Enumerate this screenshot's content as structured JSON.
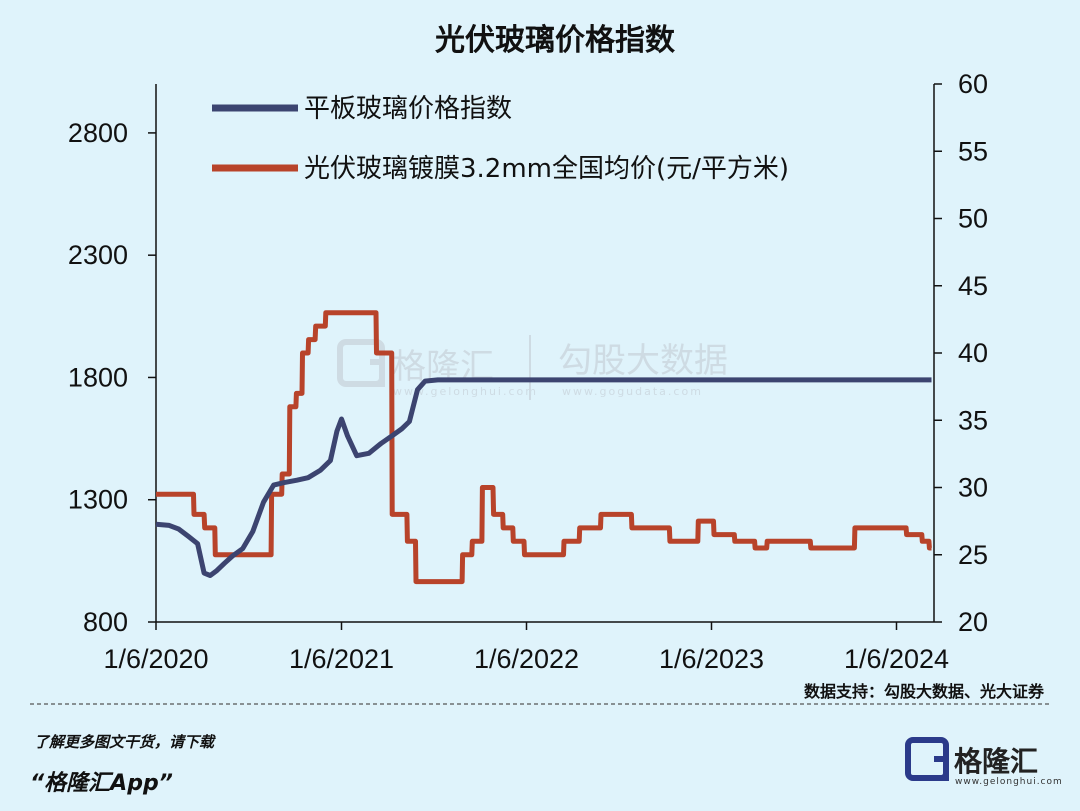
{
  "chart_data": {
    "type": "line",
    "title": "光伏玻璃价格指数",
    "x_tick_labels": [
      "1/6/2020",
      "1/6/2021",
      "1/6/2022",
      "1/6/2023",
      "1/6/2024"
    ],
    "y_left": {
      "range": [
        800,
        3000
      ],
      "ticks": [
        800,
        1300,
        1800,
        2300,
        2800
      ]
    },
    "y_right": {
      "range": [
        20,
        60
      ],
      "ticks": [
        20,
        25,
        30,
        35,
        40,
        45,
        50,
        55,
        60
      ]
    },
    "legend_position": "top-left",
    "grid": false,
    "series": [
      {
        "name": "平板玻璃价格指数",
        "axis": "left",
        "color": "#3c4470",
        "points": [
          [
            "2020-01-06",
            1200
          ],
          [
            "2020-02-01",
            1195
          ],
          [
            "2020-02-20",
            1180
          ],
          [
            "2020-03-10",
            1150
          ],
          [
            "2020-03-28",
            1120
          ],
          [
            "2020-04-10",
            1000
          ],
          [
            "2020-04-22",
            990
          ],
          [
            "2020-05-05",
            1010
          ],
          [
            "2020-05-20",
            1040
          ],
          [
            "2020-06-05",
            1070
          ],
          [
            "2020-06-25",
            1100
          ],
          [
            "2020-07-15",
            1170
          ],
          [
            "2020-08-05",
            1290
          ],
          [
            "2020-08-25",
            1360
          ],
          [
            "2020-09-15",
            1370
          ],
          [
            "2020-10-10",
            1380
          ],
          [
            "2020-11-01",
            1390
          ],
          [
            "2020-11-25",
            1420
          ],
          [
            "2020-12-15",
            1460
          ],
          [
            "2020-12-28",
            1580
          ],
          [
            "2021-01-06",
            1630
          ],
          [
            "2021-01-18",
            1560
          ],
          [
            "2021-02-05",
            1480
          ],
          [
            "2021-03-01",
            1490
          ],
          [
            "2021-03-25",
            1530
          ],
          [
            "2021-04-15",
            1560
          ],
          [
            "2021-05-05",
            1590
          ],
          [
            "2021-05-20",
            1620
          ],
          [
            "2021-06-05",
            1750
          ],
          [
            "2021-06-20",
            1785
          ],
          [
            "2021-07-15",
            1790
          ],
          [
            "2022-01-06",
            1790
          ],
          [
            "2023-01-06",
            1790
          ],
          [
            "2024-01-06",
            1790
          ],
          [
            "2024-03-15",
            1790
          ]
        ]
      },
      {
        "name": "光伏玻璃镀膜3.2mm全国均价(元/平方米)",
        "axis": "right",
        "color": "#b8432a",
        "points": [
          [
            "2020-01-06",
            29.5
          ],
          [
            "2020-03-20",
            29.5
          ],
          [
            "2020-03-21",
            28
          ],
          [
            "2020-04-10",
            28
          ],
          [
            "2020-04-11",
            27
          ],
          [
            "2020-05-01",
            27
          ],
          [
            "2020-05-02",
            25
          ],
          [
            "2020-08-20",
            25
          ],
          [
            "2020-08-21",
            29.5
          ],
          [
            "2020-09-10",
            29.5
          ],
          [
            "2020-09-11",
            31
          ],
          [
            "2020-09-25",
            31
          ],
          [
            "2020-09-26",
            36
          ],
          [
            "2020-10-08",
            36
          ],
          [
            "2020-10-09",
            37
          ],
          [
            "2020-10-20",
            37
          ],
          [
            "2020-10-21",
            40
          ],
          [
            "2020-11-01",
            40
          ],
          [
            "2020-11-02",
            41
          ],
          [
            "2020-11-15",
            41
          ],
          [
            "2020-11-16",
            42
          ],
          [
            "2020-12-05",
            42
          ],
          [
            "2020-12-06",
            43
          ],
          [
            "2021-03-15",
            43
          ],
          [
            "2021-03-16",
            40
          ],
          [
            "2021-04-15",
            40
          ],
          [
            "2021-04-16",
            28
          ],
          [
            "2021-05-15",
            28
          ],
          [
            "2021-05-16",
            26
          ],
          [
            "2021-06-01",
            26
          ],
          [
            "2021-06-02",
            23
          ],
          [
            "2021-09-01",
            23
          ],
          [
            "2021-09-02",
            25
          ],
          [
            "2021-09-20",
            25
          ],
          [
            "2021-09-21",
            26
          ],
          [
            "2021-10-10",
            26
          ],
          [
            "2021-10-11",
            30
          ],
          [
            "2021-11-01",
            30
          ],
          [
            "2021-11-02",
            28
          ],
          [
            "2021-11-20",
            28
          ],
          [
            "2021-11-21",
            27
          ],
          [
            "2021-12-10",
            27
          ],
          [
            "2021-12-11",
            26
          ],
          [
            "2022-01-01",
            26
          ],
          [
            "2022-01-02",
            25
          ],
          [
            "2022-03-20",
            25
          ],
          [
            "2022-03-21",
            26
          ],
          [
            "2022-04-20",
            26
          ],
          [
            "2022-04-21",
            27
          ],
          [
            "2022-06-01",
            27
          ],
          [
            "2022-06-02",
            28
          ],
          [
            "2022-08-01",
            28
          ],
          [
            "2022-08-02",
            27
          ],
          [
            "2022-10-15",
            27
          ],
          [
            "2022-10-16",
            26
          ],
          [
            "2022-12-10",
            26
          ],
          [
            "2022-12-11",
            27.5
          ],
          [
            "2023-01-10",
            27.5
          ],
          [
            "2023-01-11",
            26.5
          ],
          [
            "2023-02-20",
            26.5
          ],
          [
            "2023-02-21",
            26
          ],
          [
            "2023-04-01",
            26
          ],
          [
            "2023-04-02",
            25.5
          ],
          [
            "2023-04-25",
            25.5
          ],
          [
            "2023-04-26",
            26
          ],
          [
            "2023-07-20",
            26
          ],
          [
            "2023-07-21",
            25.5
          ],
          [
            "2023-10-15",
            25.5
          ],
          [
            "2023-10-16",
            27
          ],
          [
            "2024-01-25",
            27
          ],
          [
            "2024-01-26",
            26.5
          ],
          [
            "2024-02-25",
            26.5
          ],
          [
            "2024-02-26",
            26
          ],
          [
            "2024-03-10",
            26
          ],
          [
            "2024-03-11",
            25.5
          ],
          [
            "2024-03-15",
            25.5
          ]
        ]
      }
    ]
  },
  "watermark": {
    "brand": "格隆汇",
    "brand_url": "www.gelonghui.com",
    "partner": "勾股大数据",
    "partner_url": "www.gogudata.com"
  },
  "source_text": "数据支持：勾股大数据、光大证券",
  "footer": {
    "line1": "了解更多图文干货，请下载",
    "line2": "“格隆汇App”"
  },
  "brand_logo": {
    "name": "格隆汇",
    "url": "www.gelonghui.com"
  }
}
